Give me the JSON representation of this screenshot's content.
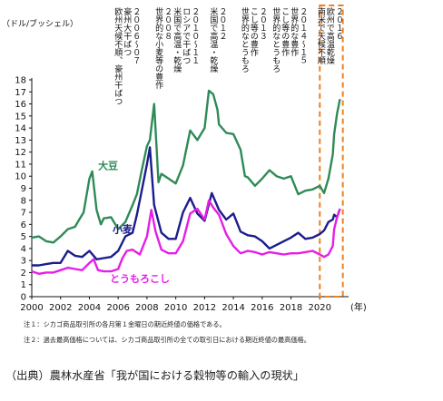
{
  "chart_data": {
    "type": "line",
    "yunit": "（ドル/ブッシェル）",
    "xunit": "(年)",
    "x_ticks": [
      "2000",
      "2002",
      "2004",
      "2006",
      "2008",
      "2010",
      "2012",
      "2014",
      "2016",
      "2018",
      "2020"
    ],
    "y_ticks": [
      "0",
      "1",
      "2",
      "3",
      "4",
      "5",
      "6",
      "7",
      "8",
      "9",
      "10",
      "11",
      "12",
      "13",
      "14",
      "15",
      "16",
      "17",
      "18"
    ],
    "xlim": [
      2000,
      2022
    ],
    "ylim": [
      0,
      18
    ],
    "grid": false,
    "highlight": {
      "x_from": 2020.0,
      "x_to": 2021.6,
      "color": "#f07f1c"
    },
    "series": [
      {
        "name": "大豆",
        "color": "#2e8b57",
        "x": [
          2000,
          2000.5,
          2001,
          2001.5,
          2002,
          2002.5,
          2003,
          2003.3,
          2003.6,
          2004,
          2004.2,
          2004.5,
          2004.8,
          2005,
          2005.5,
          2006,
          2006.5,
          2007,
          2007.3,
          2007.6,
          2008,
          2008.2,
          2008.5,
          2008.8,
          2009,
          2009.5,
          2010,
          2010.5,
          2011,
          2011.5,
          2012,
          2012.3,
          2012.6,
          2012.9,
          2013,
          2013.5,
          2014,
          2014.5,
          2014.8,
          2015,
          2015.5,
          2016,
          2016.5,
          2017,
          2017.5,
          2018,
          2018.5,
          2019,
          2019.5,
          2020,
          2020.3,
          2020.6,
          2020.9,
          2021,
          2021.2,
          2021.4
        ],
        "y": [
          4.9,
          5.0,
          4.6,
          4.5,
          5.0,
          5.6,
          5.8,
          6.4,
          7.0,
          9.8,
          10.4,
          7.2,
          6.0,
          6.5,
          6.6,
          5.6,
          6.2,
          7.6,
          8.5,
          10.3,
          12.5,
          13.0,
          16.0,
          9.5,
          10.2,
          9.8,
          9.4,
          10.9,
          13.8,
          13.0,
          14.0,
          17.1,
          16.8,
          15.5,
          14.3,
          13.6,
          13.5,
          12.2,
          10.0,
          9.9,
          9.2,
          9.8,
          10.5,
          10.0,
          9.8,
          10.0,
          8.5,
          8.8,
          8.9,
          9.2,
          8.6,
          9.8,
          11.8,
          13.5,
          15.2,
          16.4
        ]
      },
      {
        "name": "小麦",
        "color": "#1c1c8c",
        "x": [
          2000,
          2000.5,
          2001,
          2001.5,
          2002,
          2002.5,
          2003,
          2003.5,
          2004,
          2004.5,
          2005,
          2005.5,
          2006,
          2006.5,
          2007,
          2007.3,
          2007.6,
          2008,
          2008.2,
          2008.5,
          2009,
          2009.5,
          2010,
          2010.5,
          2011,
          2011.5,
          2012,
          2012.5,
          2013,
          2013.5,
          2014,
          2014.5,
          2015,
          2015.5,
          2016,
          2016.5,
          2017,
          2017.5,
          2018,
          2018.5,
          2019,
          2019.5,
          2020,
          2020.3,
          2020.6,
          2020.9,
          2021,
          2021.2,
          2021.4
        ],
        "y": [
          2.6,
          2.6,
          2.7,
          2.8,
          2.8,
          3.8,
          3.4,
          3.3,
          3.8,
          3.1,
          3.2,
          3.3,
          3.8,
          5.0,
          5.3,
          6.8,
          8.6,
          11.0,
          12.4,
          7.6,
          5.3,
          4.8,
          4.8,
          7.0,
          8.2,
          6.9,
          6.3,
          8.6,
          7.2,
          6.4,
          6.9,
          5.4,
          5.1,
          5.0,
          4.6,
          4.0,
          4.3,
          4.6,
          4.9,
          5.3,
          4.8,
          4.9,
          5.2,
          5.5,
          6.2,
          6.4,
          6.8,
          6.6,
          7.3
        ]
      },
      {
        "name": "とうもろこし",
        "color": "#e61ee6",
        "x": [
          2000,
          2000.5,
          2001,
          2001.5,
          2002,
          2002.5,
          2003,
          2003.5,
          2004,
          2004.3,
          2004.6,
          2005,
          2005.5,
          2006,
          2006.3,
          2006.6,
          2007,
          2007.5,
          2008,
          2008.3,
          2008.6,
          2009,
          2009.5,
          2010,
          2010.5,
          2011,
          2011.5,
          2012,
          2012.3,
          2012.6,
          2013,
          2013.5,
          2014,
          2014.5,
          2015,
          2015.5,
          2016,
          2016.5,
          2017,
          2017.5,
          2018,
          2018.5,
          2019,
          2019.5,
          2020,
          2020.3,
          2020.6,
          2020.9,
          2021,
          2021.2,
          2021.4
        ],
        "y": [
          2.1,
          1.9,
          2.0,
          2.0,
          2.2,
          2.4,
          2.3,
          2.2,
          2.8,
          3.1,
          2.2,
          2.1,
          2.1,
          2.3,
          3.2,
          3.8,
          3.9,
          3.5,
          5.0,
          7.2,
          5.4,
          3.9,
          3.6,
          3.6,
          4.6,
          6.9,
          7.3,
          6.4,
          8.0,
          7.4,
          6.8,
          5.2,
          4.2,
          3.6,
          3.8,
          3.7,
          3.5,
          3.7,
          3.6,
          3.5,
          3.6,
          3.6,
          3.7,
          3.8,
          3.5,
          3.3,
          3.5,
          4.2,
          5.6,
          6.6,
          7.3
        ]
      }
    ],
    "annotations": [
      {
        "x": 2007.2,
        "lines": [
          "２００６〜０７",
          "豪州大干ばつ",
          "欧州天候不順、豪州干ばつ"
        ]
      },
      {
        "x": 2009.4,
        "lines": [
          "２００８",
          "世界的な小麦等の豊作"
        ]
      },
      {
        "x": 2011.3,
        "lines": [
          "２０１０〜１１",
          "ロシアで干ばつ",
          "米国で高温・乾燥"
        ]
      },
      {
        "x": 2013.2,
        "lines": [
          "２０１２",
          "米国で高温・乾燥"
        ]
      },
      {
        "x": 2016.0,
        "lines": [
          "２０１３",
          "こし等の豊作",
          "世界的なとうもろ"
        ]
      },
      {
        "x": 2018.8,
        "lines": [
          "２０１４〜１５",
          "世界的な豊作",
          "こし等の豊作",
          "世界的なとうもろ"
        ]
      },
      {
        "x": 2021.3,
        "lines": [
          "２０１６",
          "欧州で高温乾燥",
          "南米で天候不順"
        ]
      }
    ],
    "series_labels": [
      {
        "series": "大豆",
        "text": "大豆",
        "x": 2005.3,
        "y": 10.6
      },
      {
        "series": "小麦",
        "text": "小麦",
        "x": 2006.3,
        "y": 5.3
      },
      {
        "series": "とうもろこし",
        "text": "とうもろこし",
        "x": 2007.5,
        "y": 1.2
      }
    ]
  },
  "notes": [
    "注１：シカゴ商品取引所の各月第１金曜日の期近終値の価格である。",
    "注２：過去最高価格については、シカゴ商品取引所の全ての取引日における期近終値の最高価格。"
  ],
  "source": "（出典）農林水産省「我が国における穀物等の輸入の現状」"
}
